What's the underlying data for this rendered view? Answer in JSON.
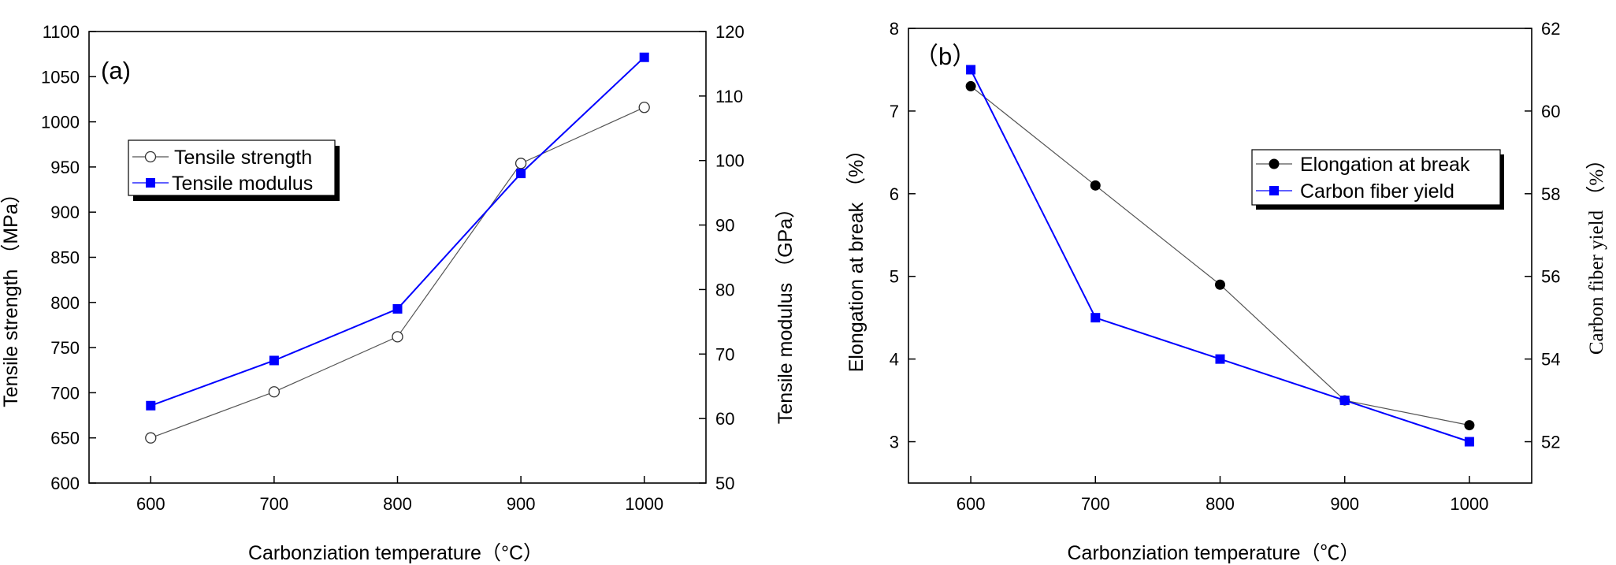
{
  "chart_data": [
    {
      "type": "line",
      "panel_label": "(a)",
      "xlabel": "Carbonziation temperature（°C）",
      "ylabel_left": "Tensile strength （MPa）",
      "ylabel_right": "Tensile modulus （GPa）",
      "x": [
        600,
        700,
        800,
        900,
        1000
      ],
      "xticks": [
        600,
        700,
        800,
        900,
        1000
      ],
      "xlim": [
        550,
        1050
      ],
      "ylim_left": [
        600,
        1100
      ],
      "yticks_left": [
        600,
        650,
        700,
        750,
        800,
        850,
        900,
        950,
        1000,
        1050,
        1100
      ],
      "ylim_right": [
        50,
        120
      ],
      "yticks_right": [
        50,
        60,
        70,
        80,
        90,
        100,
        110,
        120
      ],
      "series": [
        {
          "name": "Tensile strength",
          "axis": "left",
          "values": [
            650,
            701,
            762,
            954,
            1016
          ],
          "color": "#555555",
          "marker": "open-circle"
        },
        {
          "name": "Tensile modulus",
          "axis": "right",
          "values": [
            62,
            69,
            77,
            98,
            116
          ],
          "color": "#0000ff",
          "marker": "filled-square"
        }
      ]
    },
    {
      "type": "line",
      "panel_label": "（b）",
      "xlabel": "Carbonziation temperature（℃）",
      "ylabel_left": "Elongation at break （%）",
      "ylabel_right": "Carbon fiber yield （%）",
      "x": [
        600,
        700,
        800,
        900,
        1000
      ],
      "xticks": [
        600,
        700,
        800,
        900,
        1000
      ],
      "xlim": [
        550,
        1050
      ],
      "ylim_left": [
        2.5,
        8
      ],
      "yticks_left": [
        3,
        4,
        5,
        6,
        7,
        8
      ],
      "ylim_right": [
        51,
        62
      ],
      "yticks_right": [
        52,
        54,
        56,
        58,
        60,
        62
      ],
      "series": [
        {
          "name": "Elongation at break",
          "axis": "left",
          "values": [
            7.3,
            6.1,
            4.9,
            3.5,
            3.2
          ],
          "color": "#555555",
          "marker": "filled-circle"
        },
        {
          "name": "Carbon fiber yield",
          "axis": "right",
          "values": [
            61,
            55,
            54,
            53,
            52
          ],
          "color": "#0000ff",
          "marker": "filled-square"
        }
      ]
    }
  ]
}
